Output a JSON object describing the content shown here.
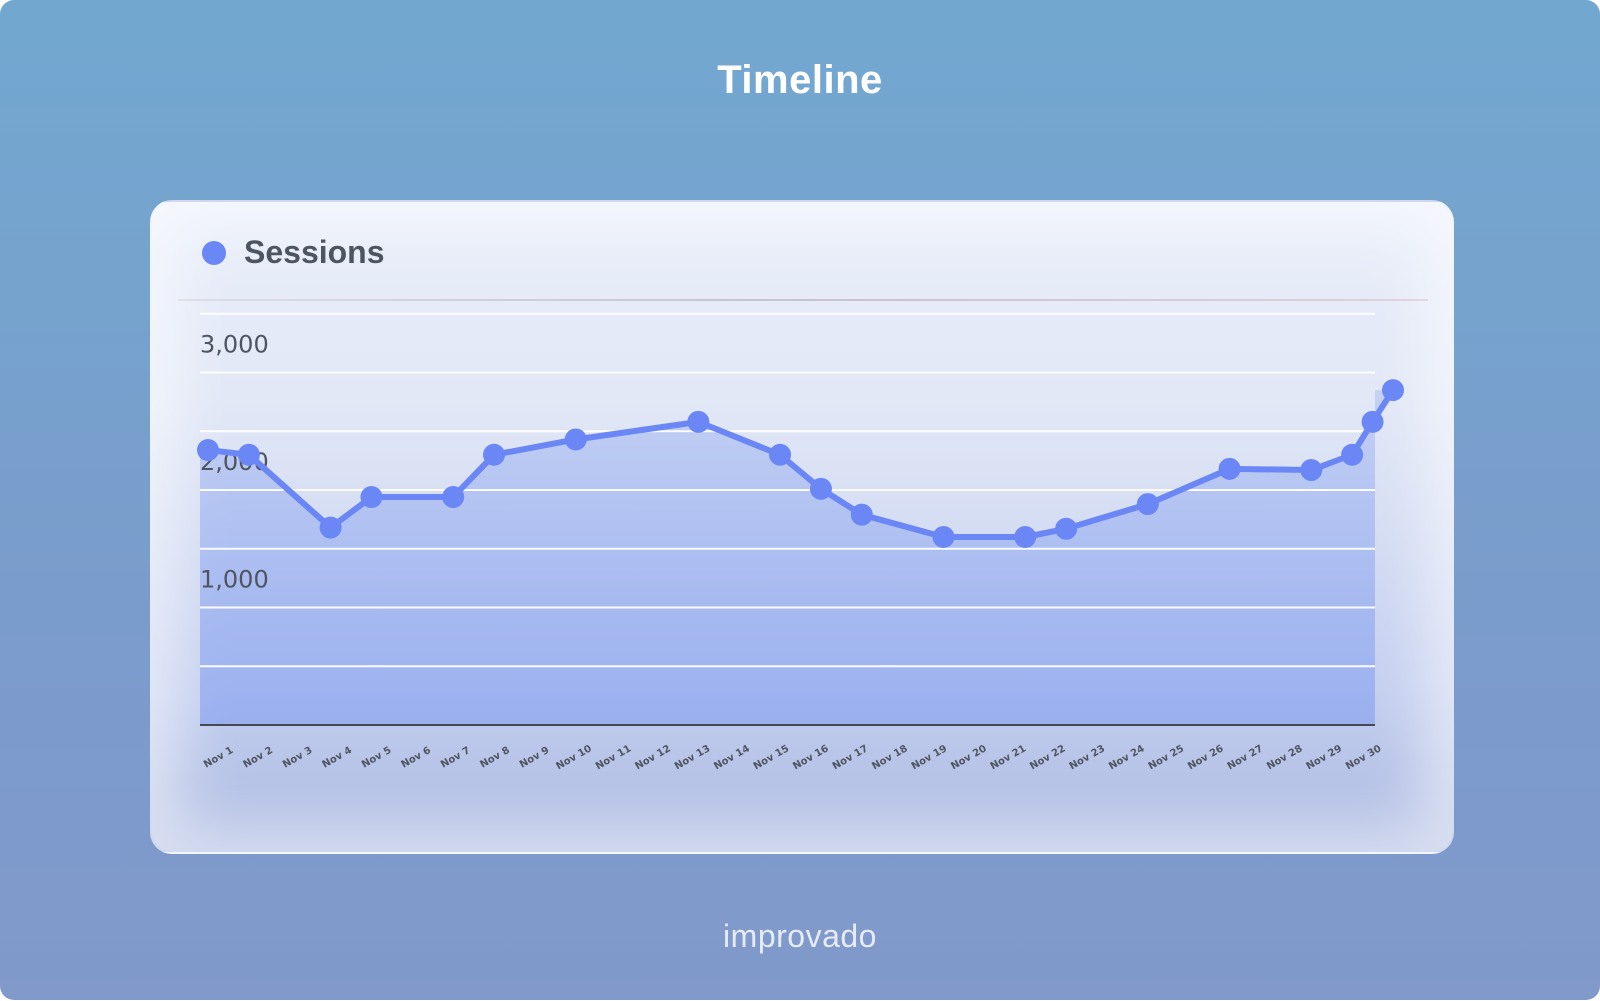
{
  "page": {
    "title": "Timeline",
    "brand": "improvado"
  },
  "colors": {
    "series": "#6b87f5",
    "area": "#8ea7f0",
    "grid": "#ffffff",
    "axis": "#444a55"
  },
  "chart_data": {
    "type": "line",
    "x": [
      "Nov 1",
      "Nov 2",
      "Nov 3",
      "Nov 4",
      "Nov 5",
      "Nov 6",
      "Nov 7",
      "Nov 8",
      "Nov 9",
      "Nov 10",
      "Nov 11",
      "Nov 12",
      "Nov 13",
      "Nov 14",
      "Nov 15",
      "Nov 16",
      "Nov 17",
      "Nov 18",
      "Nov 19",
      "Nov 20",
      "Nov 21",
      "Nov 22",
      "Nov 23",
      "Nov 24",
      "Nov 25",
      "Nov 26",
      "Nov 27",
      "Nov 28",
      "Nov 29",
      "Nov 30"
    ],
    "series": [
      {
        "name": "Sessions",
        "points": [
          [
            "Nov 1",
            2340
          ],
          [
            "Nov 2",
            2300
          ],
          [
            "Nov 4",
            1680
          ],
          [
            "Nov 5",
            1940
          ],
          [
            "Nov 7",
            1940
          ],
          [
            "Nov 8",
            2300
          ],
          [
            "Nov 10",
            2430
          ],
          [
            "Nov 13",
            2580
          ],
          [
            "Nov 15",
            2300
          ],
          [
            "Nov 16",
            2010
          ],
          [
            "Nov 17",
            1790
          ],
          [
            "Nov 19",
            1600
          ],
          [
            "Nov 21",
            1600
          ],
          [
            "Nov 22",
            1670
          ],
          [
            "Nov 24",
            1880
          ],
          [
            "Nov 26",
            2180
          ],
          [
            "Nov 28",
            2170
          ],
          [
            "Nov 29",
            2300
          ],
          [
            "Nov 29.5",
            2580
          ],
          [
            "Nov 30",
            2850
          ]
        ]
      }
    ],
    "yticks": [
      {
        "value": 1000,
        "label": "1,000"
      },
      {
        "value": 2000,
        "label": "2,000"
      },
      {
        "value": 3000,
        "label": "3,000"
      }
    ],
    "ylim": [
      0,
      3000
    ],
    "grid": true,
    "legend": "top-left",
    "area_fill": true
  }
}
